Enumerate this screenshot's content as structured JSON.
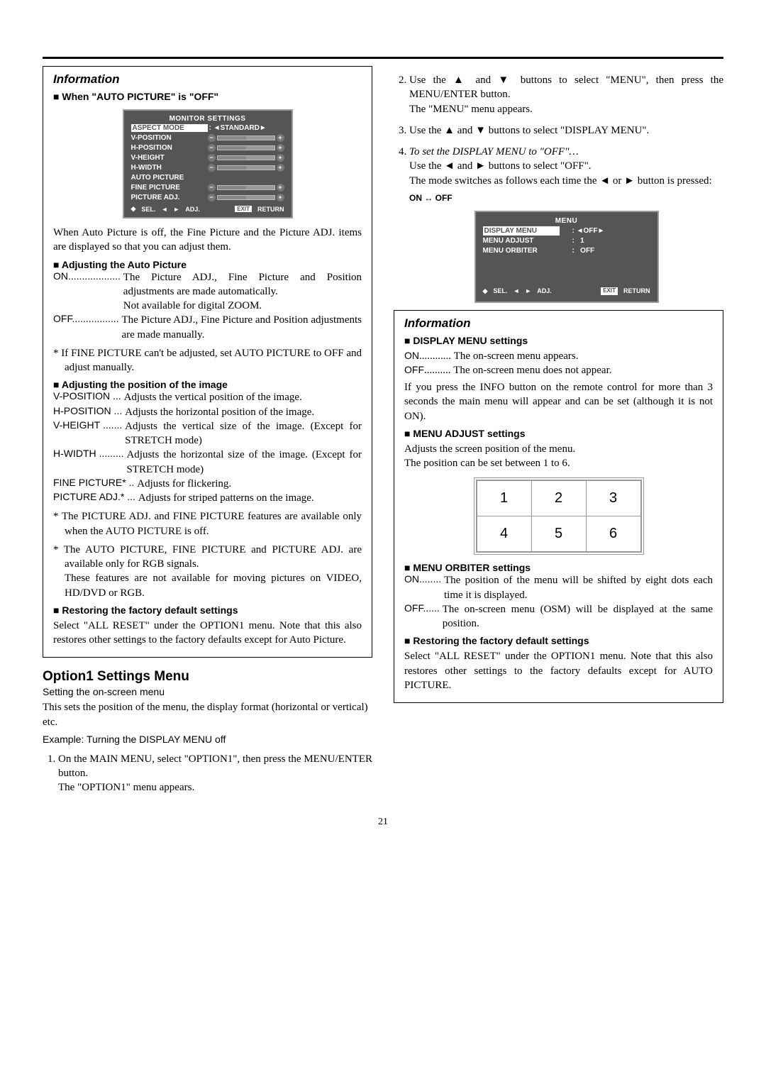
{
  "page_number": "21",
  "left": {
    "info_title": "Information",
    "auto_off_head": "When \"AUTO PICTURE\" is \"OFF\"",
    "osd1": {
      "title": "MONITOR SETTINGS",
      "aspect_label": "ASPECT MODE",
      "aspect_value": "STANDARD",
      "slider_items": [
        "V-POSITION",
        "H-POSITION",
        "V-HEIGHT",
        "H-WIDTH"
      ],
      "auto_picture": "AUTO PICTURE",
      "extra_sliders": [
        "FINE PICTURE",
        "PICTURE ADJ."
      ],
      "footer_sel": "SEL.",
      "footer_adj": "ADJ.",
      "footer_exit": "EXIT",
      "footer_return": "RETURN"
    },
    "auto_off_body": "When Auto Picture is off, the Fine Picture and the Picture ADJ. items are displayed so that you can adjust them.",
    "adjust_auto_head": "Adjusting the Auto Picture",
    "on_term": "ON",
    "on_dots": "...................",
    "on_desc1": "The Picture ADJ., Fine Picture and Position adjustments are made automatically.",
    "on_desc2": "Not available for digital ZOOM.",
    "off_term": "OFF",
    "off_dots": ".................",
    "off_desc": "The Picture ADJ., Fine Picture and Position adjustments are made manually.",
    "fine_note": "* If FINE PICTURE can't be adjusted, set AUTO PICTURE to OFF and adjust manually.",
    "adjust_pos_head": "Adjusting the position of the image",
    "defs": [
      {
        "t": "V-POSITION",
        "d": "...",
        "x": "Adjusts the vertical position of the image."
      },
      {
        "t": "H-POSITION",
        "d": "...",
        "x": "Adjusts the horizontal position of the image."
      },
      {
        "t": "V-HEIGHT",
        "d": ".......",
        "x": "Adjusts the vertical size of the image. (Except for STRETCH mode)"
      },
      {
        "t": "H-WIDTH",
        "d": ".........",
        "x": "Adjusts the horizontal size of the image. (Except for STRETCH mode)"
      },
      {
        "t": "FINE PICTURE*",
        "d": "..",
        "x": "Adjusts for flickering."
      },
      {
        "t": "PICTURE ADJ.*",
        "d": "...",
        "x": "Adjusts for striped patterns on the image."
      }
    ],
    "pos_note1": "* The PICTURE ADJ. and FINE PICTURE features are available only when the AUTO PICTURE is off.",
    "pos_note2": "* The AUTO PICTURE, FINE PICTURE and PICTURE ADJ. are available only for RGB signals.",
    "pos_note2b": "These features are not available for moving pictures on VIDEO, HD/DVD or RGB.",
    "restore_head": "Restoring the factory default settings",
    "restore_body": "Select \"ALL RESET\" under the OPTION1 menu. Note that this also restores other settings to the factory defaults except for Auto Picture.",
    "opt1_title": "Option1 Settings Menu",
    "opt1_sub": "Setting the on-screen menu",
    "opt1_body": "This sets the position of the menu, the display format (horizontal or vertical) etc.",
    "example": "Example: Turning the DISPLAY MENU off",
    "step1a": "On the MAIN MENU, select \"OPTION1\", then press the MENU/ENTER button.",
    "step1b": "The \"OPTION1\" menu appears."
  },
  "right": {
    "step2a": "Use the ▲ and ▼ buttons to select \"MENU\", then press the MENU/ENTER button.",
    "step2b": "The \"MENU\" menu appears.",
    "step3": "Use the ▲ and ▼ buttons to select \"DISPLAY MENU\".",
    "step4_it": "To set the DISPLAY MENU to \"OFF\"…",
    "step4a": "Use the ◄ and ► buttons to select \"OFF\".",
    "step4b": "The mode switches as follows each time the ◄ or ► button is pressed:",
    "onoff": "ON ↔ OFF",
    "osd2": {
      "title": "MENU",
      "rows": [
        {
          "label": "DISPLAY MENU",
          "value": "OFF",
          "hl": true,
          "arrows": true
        },
        {
          "label": "MENU ADJUST",
          "value": "1",
          "hl": false,
          "arrows": false
        },
        {
          "label": "MENU ORBITER",
          "value": "OFF",
          "hl": false,
          "arrows": false
        }
      ],
      "footer_sel": "SEL.",
      "footer_adj": "ADJ.",
      "footer_exit": "EXIT",
      "footer_return": "RETURN"
    },
    "info_title": "Information",
    "disp_head": "DISPLAY MENU settings",
    "disp_on_term": "ON",
    "disp_on_dots": "............",
    "disp_on": "The on-screen menu appears.",
    "disp_off_term": "OFF",
    "disp_off_dots": "..........",
    "disp_off": "The on-screen menu does not appear.",
    "disp_body": "If you press the INFO button on the remote control for more than 3 seconds the main menu will appear and can be set (although it is not ON).",
    "adj_head": "MENU ADJUST settings",
    "adj_body1": "Adjusts the screen position of the menu.",
    "adj_body2": "The position can be set between 1 to 6.",
    "grid": [
      "1",
      "2",
      "3",
      "4",
      "5",
      "6"
    ],
    "orb_head": "MENU ORBITER settings",
    "orb_on_term": "ON",
    "orb_on_dots": "........",
    "orb_on": "The position of the menu will be shifted by eight dots each time it is displayed.",
    "orb_off_term": "OFF",
    "orb_off_dots": "......",
    "orb_off": "The on-screen menu (OSM) will be displayed at the same position.",
    "restore_head": "Restoring the factory default settings",
    "restore_body": "Select \"ALL RESET\" under the OPTION1 menu. Note that this also restores other settings to the factory defaults except for AUTO PICTURE."
  }
}
